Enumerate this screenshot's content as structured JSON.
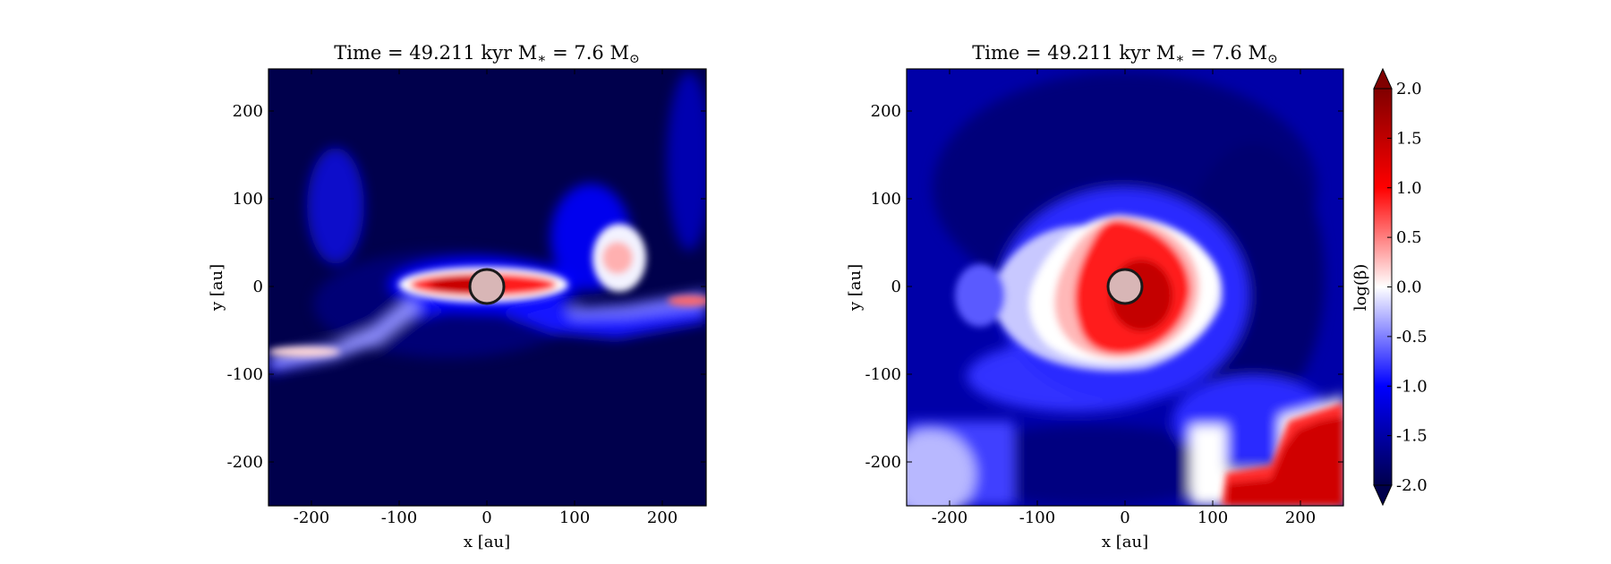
{
  "figure": {
    "panels": [
      {
        "title": "Time = 49.211 kyr    M",
        "title_mstar_sub": "∗",
        "title_value": " = 7.6 M",
        "title_sun_sub": "⊙",
        "xlabel": "x [au]",
        "ylabel": "y [au]",
        "variant": "edge-on"
      },
      {
        "title": "Time = 49.211 kyr    M",
        "title_mstar_sub": "∗",
        "title_value": " = 7.6 M",
        "title_sun_sub": "⊙",
        "xlabel": "x [au]",
        "ylabel": "y [au]",
        "variant": "face-on"
      }
    ],
    "colorbar": {
      "label": "log(β)",
      "ticks": [
        "2.0",
        "1.5",
        "1.0",
        "0.5",
        "0.0",
        "-0.5",
        "-1.0",
        "-1.5",
        "-2.0"
      ]
    }
  },
  "chart_data": [
    {
      "type": "heatmap",
      "title": "Time = 49.211 kyr M∗ = 7.6 M⊙",
      "xlabel": "x [au]",
      "ylabel": "y [au]",
      "xlim": [
        -250,
        250
      ],
      "ylim": [
        -250,
        250
      ],
      "xticks": [
        -200,
        -100,
        0,
        100,
        200
      ],
      "yticks": [
        -200,
        -100,
        0,
        100,
        200
      ],
      "quantity": "log(β)",
      "color_range": [
        -2.0,
        2.0
      ],
      "colormap": "seismic",
      "sink_marker": {
        "x": 0,
        "y": 0,
        "radius_au": 20
      }
    },
    {
      "type": "heatmap",
      "title": "Time = 49.211 kyr M∗ = 7.6 M⊙",
      "xlabel": "x [au]",
      "ylabel": "y [au]",
      "xlim": [
        -250,
        250
      ],
      "ylim": [
        -250,
        250
      ],
      "xticks": [
        -200,
        -100,
        0,
        100,
        200
      ],
      "yticks": [
        -200,
        -100,
        0,
        100,
        200
      ],
      "quantity": "log(β)",
      "color_range": [
        -2.0,
        2.0
      ],
      "colormap": "seismic",
      "colorbar_ticks": [
        2.0,
        1.5,
        1.0,
        0.5,
        0.0,
        -0.5,
        -1.0,
        -1.5,
        -2.0
      ],
      "sink_marker": {
        "x": 0,
        "y": 0,
        "radius_au": 20
      }
    }
  ],
  "colors": {
    "cmap_low": "#00004c",
    "cmap_mid": "#ffffff",
    "cmap_high": "#800000",
    "sink_fill": "#d8b6b6"
  }
}
